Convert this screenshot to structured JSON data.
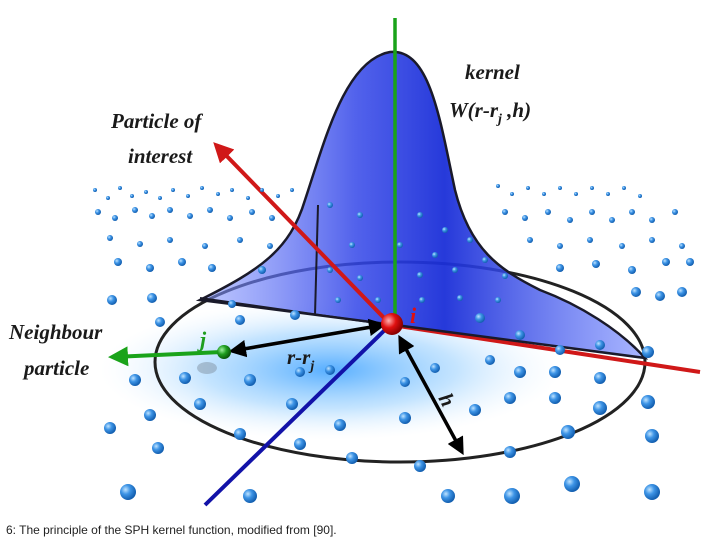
{
  "labels": {
    "kernel": "kernel",
    "kernel_formula": {
      "a": "W(r-r",
      "sub": "j",
      "b": " ,h)"
    },
    "particle_of_interest_line1": "Particle of",
    "particle_of_interest_line2": "interest",
    "neighbour_line1": "Neighbour",
    "neighbour_line2": "particle",
    "i": "i",
    "j": "j",
    "distance": {
      "a": "r-r",
      "sub": "j"
    },
    "h": "h"
  },
  "caption": "6: The principle of the SPH kernel function, modified from [90].",
  "colors": {
    "particle": "#3d94e6",
    "kernel_fill": "#2a3fe0",
    "x_axis": "#d01818",
    "y_axis": "#1aa31a",
    "z_axis": "#1212a8",
    "particle_i": "#e01010",
    "particle_j": "#1f9e1f"
  }
}
